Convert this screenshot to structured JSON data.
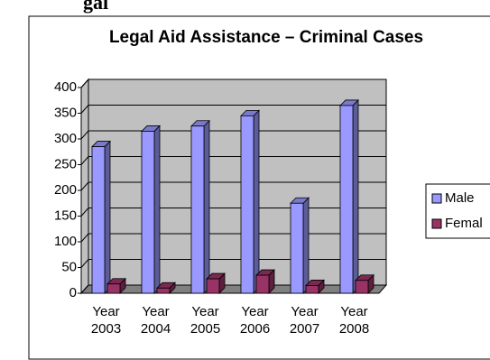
{
  "heading": "gal",
  "chart_data": {
    "type": "bar3d",
    "title": "Legal Aid Assistance – Criminal Cases",
    "categories": [
      "Year 2003",
      "Year 2004",
      "Year 2005",
      "Year 2006",
      "Year 2007",
      "Year 2008"
    ],
    "series": [
      {
        "name": "Male",
        "color": "#9999ff",
        "values": [
          285,
          315,
          325,
          345,
          175,
          365
        ]
      },
      {
        "name": "Femal",
        "color": "#993366",
        "values": [
          18,
          10,
          28,
          35,
          15,
          25
        ]
      }
    ],
    "ylim": [
      0,
      400
    ],
    "yticks": [
      0,
      50,
      100,
      150,
      200,
      250,
      300,
      350,
      400
    ],
    "grid": true
  }
}
